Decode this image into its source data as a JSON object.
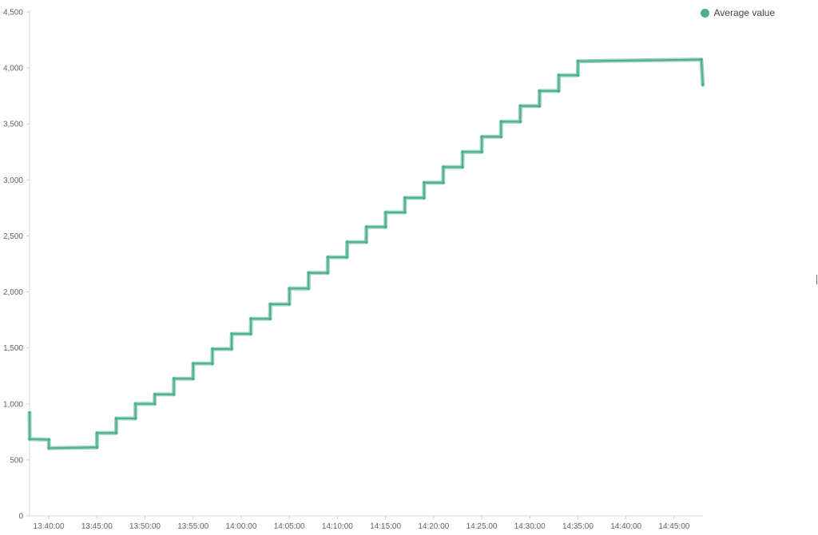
{
  "chart_data": {
    "type": "line",
    "title": "",
    "xlabel": "",
    "ylabel": "",
    "y_range": [
      0,
      4500
    ],
    "y_ticks": [
      0,
      500,
      1000,
      1500,
      2000,
      2500,
      3000,
      3500,
      4000,
      4500
    ],
    "y_tick_labels": [
      "0",
      "500",
      "1,000",
      "1,500",
      "2,000",
      "2,500",
      "3,000",
      "3,500",
      "4,000",
      "4,500"
    ],
    "x_range": [
      "13:38:00",
      "14:48:00"
    ],
    "x_ticks": [
      "13:40:00",
      "13:45:00",
      "13:50:00",
      "13:55:00",
      "14:00:00",
      "14:05:00",
      "14:10:00",
      "14:15:00",
      "14:20:00",
      "14:25:00",
      "14:30:00",
      "14:35:00",
      "14:40:00",
      "14:45:00"
    ],
    "grid": false,
    "legend_position": "top-right",
    "series": [
      {
        "name": "Average value",
        "color": "#4caf8f",
        "x": [
          "13:38:00",
          "13:38:01",
          "13:40:00",
          "13:40:01",
          "13:45:00",
          "13:45:01",
          "13:47:00",
          "13:47:01",
          "13:49:00",
          "13:49:01",
          "13:51:00",
          "13:51:01",
          "13:53:00",
          "13:53:01",
          "13:55:00",
          "13:55:01",
          "13:57:00",
          "13:57:01",
          "13:59:00",
          "13:59:01",
          "14:01:00",
          "14:01:01",
          "14:03:00",
          "14:03:01",
          "14:05:00",
          "14:05:01",
          "14:07:00",
          "14:07:01",
          "14:09:00",
          "14:09:01",
          "14:11:00",
          "14:11:01",
          "14:13:00",
          "14:13:01",
          "14:15:00",
          "14:15:01",
          "14:17:00",
          "14:17:01",
          "14:19:00",
          "14:19:01",
          "14:21:00",
          "14:21:01",
          "14:23:00",
          "14:23:01",
          "14:25:00",
          "14:25:01",
          "14:27:00",
          "14:27:01",
          "14:29:00",
          "14:29:01",
          "14:31:00",
          "14:31:01",
          "14:33:00",
          "14:33:01",
          "14:35:00",
          "14:35:01",
          "14:47:50",
          "14:47:59"
        ],
        "values": [
          920,
          685,
          680,
          605,
          612,
          740,
          740,
          870,
          870,
          1000,
          1000,
          1085,
          1085,
          1225,
          1225,
          1360,
          1360,
          1490,
          1490,
          1625,
          1625,
          1760,
          1760,
          1890,
          1890,
          2030,
          2030,
          2170,
          2170,
          2310,
          2310,
          2445,
          2445,
          2580,
          2580,
          2710,
          2710,
          2840,
          2840,
          2975,
          2975,
          3115,
          3115,
          3250,
          3250,
          3385,
          3385,
          3520,
          3520,
          3660,
          3660,
          3795,
          3795,
          3935,
          3935,
          4060,
          4075,
          3850
        ]
      }
    ]
  },
  "legend": {
    "items": [
      {
        "label": "Average value",
        "color": "#4caf8f"
      }
    ]
  }
}
